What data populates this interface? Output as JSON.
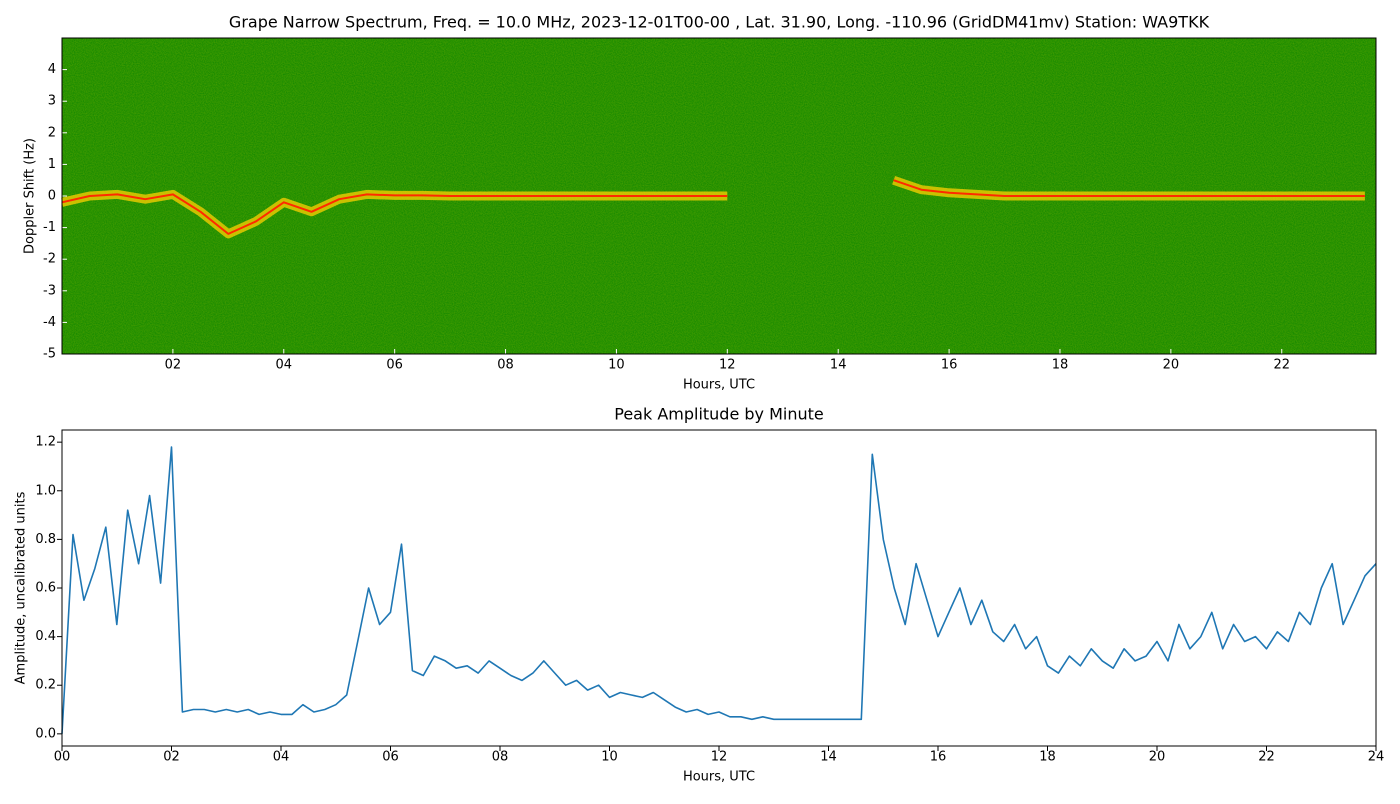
{
  "chart_data": [
    {
      "type": "spectrogram",
      "title": "Grape Narrow Spectrum, Freq. = 10.0 MHz, 2023-12-01T00-00 , Lat.  31.90, Long. -110.96 (GridDM41mv) Station: WA9TKK",
      "x_label": "Hours, UTC",
      "y_label": "Doppler Shift (Hz)",
      "x": [
        0,
        0.5,
        1,
        1.5,
        2,
        2.5,
        3,
        3.5,
        4,
        4.5,
        5,
        5.5,
        6,
        6.5,
        7,
        7.5,
        8,
        8.5,
        9,
        9.5,
        10,
        10.5,
        11,
        11.5,
        12,
        12.5,
        13,
        13.5,
        14,
        14.5,
        15,
        15.5,
        16,
        16.5,
        17,
        17.5,
        18,
        18.5,
        19,
        19.5,
        20,
        20.5,
        21,
        21.5,
        22,
        22.5,
        23,
        23.5
      ],
      "values": [
        -0.2,
        0,
        0.05,
        -0.1,
        0.05,
        -0.5,
        -1.2,
        -0.8,
        -0.2,
        -0.5,
        -0.1,
        0.05,
        0.02,
        0.02,
        0,
        0,
        0,
        0,
        0,
        0,
        0,
        0,
        0,
        0,
        0,
        null,
        null,
        null,
        null,
        null,
        0.5,
        0.2,
        0.1,
        0.05,
        0,
        0,
        0,
        0,
        0,
        0,
        0,
        0,
        0,
        0,
        0,
        0,
        0,
        0
      ],
      "color": "#ffd000",
      "xlim": [
        0,
        23.7
      ],
      "xticks": [
        {
          "value": 2,
          "label": "02"
        },
        {
          "value": 4,
          "label": "04"
        },
        {
          "value": 6,
          "label": "06"
        },
        {
          "value": 8,
          "label": "08"
        },
        {
          "value": 10,
          "label": "10"
        },
        {
          "value": 12,
          "label": "12"
        },
        {
          "value": 14,
          "label": "14"
        },
        {
          "value": 16,
          "label": "16"
        },
        {
          "value": 18,
          "label": "18"
        },
        {
          "value": 20,
          "label": "20"
        },
        {
          "value": 22,
          "label": "22"
        }
      ],
      "ylim": [
        -5,
        5
      ],
      "yticks": [
        -5,
        -4,
        -3,
        -2,
        -1,
        0,
        1,
        2,
        3,
        4
      ]
    },
    {
      "type": "line",
      "title": "Peak Amplitude by Minute",
      "x_label": "Hours, UTC",
      "y_label": "Amplitude, uncalibrated units",
      "x": [
        0,
        0.2,
        0.4,
        0.6,
        0.8,
        1,
        1.2,
        1.4,
        1.6,
        1.8,
        2,
        2.2,
        2.4,
        2.6,
        2.8,
        3,
        3.2,
        3.4,
        3.6,
        3.8,
        4,
        4.2,
        4.4,
        4.6,
        4.8,
        5,
        5.2,
        5.4,
        5.6,
        5.8,
        6,
        6.2,
        6.4,
        6.6,
        6.8,
        7,
        7.2,
        7.4,
        7.6,
        7.8,
        8,
        8.2,
        8.4,
        8.6,
        8.8,
        9,
        9.2,
        9.4,
        9.6,
        9.8,
        10,
        10.2,
        10.4,
        10.6,
        10.8,
        11,
        11.2,
        11.4,
        11.6,
        11.8,
        12,
        12.2,
        12.4,
        12.6,
        12.8,
        13,
        13.2,
        13.4,
        13.6,
        13.8,
        14,
        14.2,
        14.4,
        14.6,
        14.8,
        15,
        15.2,
        15.4,
        15.6,
        15.8,
        16,
        16.2,
        16.4,
        16.6,
        16.8,
        17,
        17.2,
        17.4,
        17.6,
        17.8,
        18,
        18.2,
        18.4,
        18.6,
        18.8,
        19,
        19.2,
        19.4,
        19.6,
        19.8,
        20,
        20.2,
        20.4,
        20.6,
        20.8,
        21,
        21.2,
        21.4,
        21.6,
        21.8,
        22,
        22.2,
        22.4,
        22.6,
        22.8,
        23,
        23.2,
        23.4,
        23.6,
        23.8,
        24
      ],
      "values": [
        0,
        0.82,
        0.55,
        0.68,
        0.85,
        0.45,
        0.92,
        0.7,
        0.98,
        0.62,
        1.18,
        0.09,
        0.1,
        0.1,
        0.09,
        0.1,
        0.09,
        0.1,
        0.08,
        0.09,
        0.08,
        0.08,
        0.12,
        0.09,
        0.1,
        0.12,
        0.16,
        0.38,
        0.6,
        0.45,
        0.5,
        0.78,
        0.26,
        0.24,
        0.32,
        0.3,
        0.27,
        0.28,
        0.25,
        0.3,
        0.27,
        0.24,
        0.22,
        0.25,
        0.3,
        0.25,
        0.2,
        0.22,
        0.18,
        0.2,
        0.15,
        0.17,
        0.16,
        0.15,
        0.17,
        0.14,
        0.11,
        0.09,
        0.1,
        0.08,
        0.09,
        0.07,
        0.07,
        0.06,
        0.07,
        0.06,
        0.06,
        0.06,
        0.06,
        0.06,
        0.06,
        0.06,
        0.06,
        0.06,
        1.15,
        0.8,
        0.6,
        0.45,
        0.7,
        0.55,
        0.4,
        0.5,
        0.6,
        0.45,
        0.55,
        0.42,
        0.38,
        0.45,
        0.35,
        0.4,
        0.28,
        0.25,
        0.32,
        0.28,
        0.35,
        0.3,
        0.27,
        0.35,
        0.3,
        0.32,
        0.38,
        0.3,
        0.45,
        0.35,
        0.4,
        0.5,
        0.35,
        0.45,
        0.38,
        0.4,
        0.35,
        0.42,
        0.38,
        0.5,
        0.45,
        0.6,
        0.7,
        0.45,
        0.55,
        0.65,
        0.7
      ],
      "color": "#1f77b4",
      "xlim": [
        0,
        24
      ],
      "xticks": [
        {
          "value": 0,
          "label": "00"
        },
        {
          "value": 2,
          "label": "02"
        },
        {
          "value": 4,
          "label": "04"
        },
        {
          "value": 6,
          "label": "06"
        },
        {
          "value": 8,
          "label": "08"
        },
        {
          "value": 10,
          "label": "10"
        },
        {
          "value": 12,
          "label": "12"
        },
        {
          "value": 14,
          "label": "14"
        },
        {
          "value": 16,
          "label": "16"
        },
        {
          "value": 18,
          "label": "18"
        },
        {
          "value": 20,
          "label": "20"
        },
        {
          "value": 22,
          "label": "22"
        },
        {
          "value": 24,
          "label": "24"
        }
      ],
      "ylim": [
        -0.05,
        1.25
      ],
      "yticks": [
        {
          "value": 0,
          "label": "0.0"
        },
        {
          "value": 0.2,
          "label": "0.2"
        },
        {
          "value": 0.4,
          "label": "0.4"
        },
        {
          "value": 0.6,
          "label": "0.6"
        },
        {
          "value": 0.8,
          "label": "0.8"
        },
        {
          "value": 1,
          "label": "1.0"
        },
        {
          "value": 1.2,
          "label": "1.2"
        }
      ]
    }
  ]
}
